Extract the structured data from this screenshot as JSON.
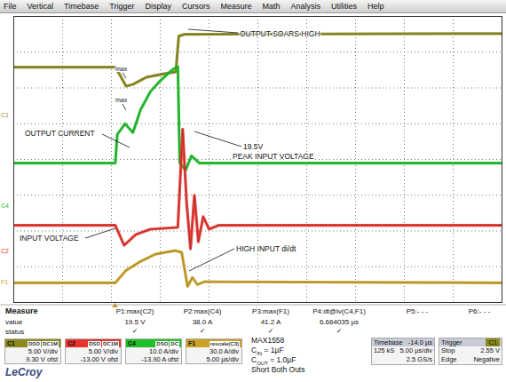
{
  "chart_data": {
    "type": "line",
    "series": [
      {
        "name": "C1",
        "color": "#8c8a1e",
        "x": [
          0,
          10.4,
          11.0,
          11.5,
          12.2,
          13.6,
          15.5,
          16.6,
          16.9,
          17.5,
          50
        ],
        "values": [
          2.58,
          2.58,
          2.3,
          2.05,
          2.1,
          2.3,
          2.4,
          2.45,
          3.45,
          3.5,
          3.52
        ]
      },
      {
        "name": "C4",
        "color": "#1fbf2a",
        "x": [
          0,
          10.4,
          10.6,
          11.4,
          12.2,
          13.0,
          14.0,
          15.0,
          16.2,
          16.8,
          17.0,
          17.6,
          18.2,
          19.0,
          50
        ],
        "values": [
          -0.1,
          -0.1,
          0.7,
          1.0,
          0.75,
          1.4,
          1.9,
          2.2,
          2.5,
          2.6,
          -0.1,
          -0.3,
          0.1,
          -0.1,
          -0.1
        ]
      },
      {
        "name": "C2",
        "color": "#e8322c",
        "x": [
          0,
          10.4,
          11.3,
          12.5,
          14.0,
          16.8,
          17.3,
          17.7,
          18.1,
          18.5,
          18.9,
          19.4,
          20.0,
          21.0,
          50
        ],
        "values": [
          -1.84,
          -1.84,
          -2.4,
          -2.1,
          -1.95,
          -1.9,
          0.85,
          -1.2,
          -2.5,
          -1.0,
          -2.3,
          -1.6,
          -1.95,
          -1.84,
          -1.84
        ]
      },
      {
        "name": "F1",
        "color": "#c9a227",
        "x": [
          0,
          10.4,
          11.5,
          13.0,
          14.5,
          16.5,
          17.2,
          17.8,
          18.3,
          18.8,
          19.5,
          50
        ],
        "values": [
          -3.45,
          -3.45,
          -3.1,
          -2.85,
          -2.65,
          -2.55,
          -2.6,
          -3.55,
          -3.3,
          -3.5,
          -3.42,
          -3.45
        ]
      }
    ],
    "xlim": [
      0,
      50
    ],
    "xticks": [
      0,
      5,
      10,
      15,
      20,
      25,
      30,
      35,
      40,
      45,
      50
    ],
    "ylim": [
      -4,
      4
    ],
    "yticks": [
      -4,
      -3,
      -2,
      -1,
      0,
      1,
      2,
      3,
      4
    ],
    "grid": true,
    "tick_labels": false,
    "annotations": [
      "OUTPUT SOARS HIGH",
      "max",
      "max",
      "OUTPUT CURRENT",
      "19.5V",
      "PEAK INPUT VOLTAGE",
      "INPUT VOLTAGE",
      "HIGH INPUT di/dt"
    ]
  },
  "menu": [
    "File",
    "Vertical",
    "Timebase",
    "Trigger",
    "Display",
    "Cursors",
    "Measure",
    "Math",
    "Analysis",
    "Utilities",
    "Help"
  ],
  "measure_table": {
    "title": "Measure",
    "row_labels": [
      "value",
      "status"
    ],
    "columns": [
      {
        "name": "P1:max(C2)",
        "value": "19.5 V",
        "status": "✓"
      },
      {
        "name": "P2:max(C4)",
        "value": "38.0 A",
        "status": "✓"
      },
      {
        "name": "P3:max(F1)",
        "value": "41.2 A",
        "status": "✓"
      },
      {
        "name": "P4:dt@lv(C4,F1)",
        "value": "6.664035 µs",
        "status": "✓"
      },
      {
        "name": "P5:- - -"
      },
      {
        "name": "P6:- - -"
      }
    ]
  },
  "channels": [
    {
      "name": "C1",
      "color": "#8c8a1e",
      "tags": [
        "DSO",
        "DC1M"
      ],
      "lines": [
        "5.00 V/div",
        "9.30 V ofst"
      ]
    },
    {
      "name": "C2",
      "color": "#e8322c",
      "tags": [
        "DSO",
        "DC1M"
      ],
      "lines": [
        "5.00 V/div",
        "-13.00 V ofst"
      ]
    },
    {
      "name": "C4",
      "color": "#1fbf2a",
      "tags": [
        "DSO",
        "DC"
      ],
      "lines": [
        "10.0 A/div",
        "-13.90 A ofst"
      ]
    },
    {
      "name": "F1",
      "color": "#c9a227",
      "tags": [
        "rescale(C3)"
      ],
      "lines": [
        "30.0 A/div",
        "5.00 µs/div"
      ]
    }
  ],
  "notes": [
    {
      "main": "MAX1558"
    },
    {
      "main": "C",
      "sub": "IN",
      "tail": " = 1µF"
    },
    {
      "main": "C",
      "sub": "OUT",
      "tail": " = 1.0µF"
    },
    {
      "main": "Short Both Outs"
    }
  ],
  "timebase": {
    "title": "Timebase",
    "value": "-14.0 µs",
    "rows": [
      [
        "",
        "5.00 µs/div"
      ],
      [
        "125 kS",
        "2.5 GS/s"
      ]
    ]
  },
  "trigger": {
    "title": "Trigger",
    "source": "C1",
    "rows": [
      [
        "Stop",
        "2.55 V"
      ],
      [
        "Edge",
        "Negative"
      ]
    ]
  },
  "logo": "LeCroy"
}
